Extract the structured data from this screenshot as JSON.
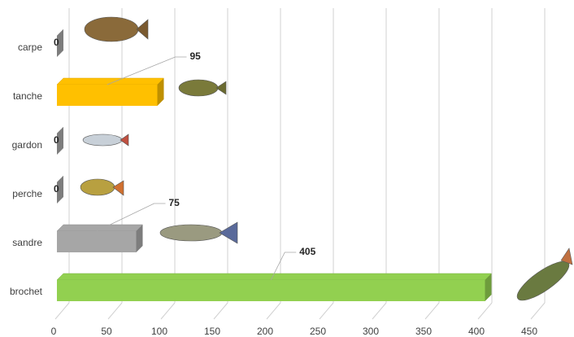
{
  "chart_data": {
    "type": "bar3d",
    "categories": [
      "carpe",
      "tanche",
      "gardon",
      "perche",
      "sandre",
      "brochet"
    ],
    "values": [
      0,
      95,
      0,
      0,
      75,
      405
    ],
    "colors": [
      "#a6a6a6",
      "#ffc000",
      "#a6a6a6",
      "#a6a6a6",
      "#a6a6a6",
      "#92d050"
    ],
    "xlim": [
      0,
      450
    ],
    "xticks": [
      0,
      50,
      100,
      150,
      200,
      250,
      300,
      350,
      400,
      450
    ],
    "grid": true
  }
}
